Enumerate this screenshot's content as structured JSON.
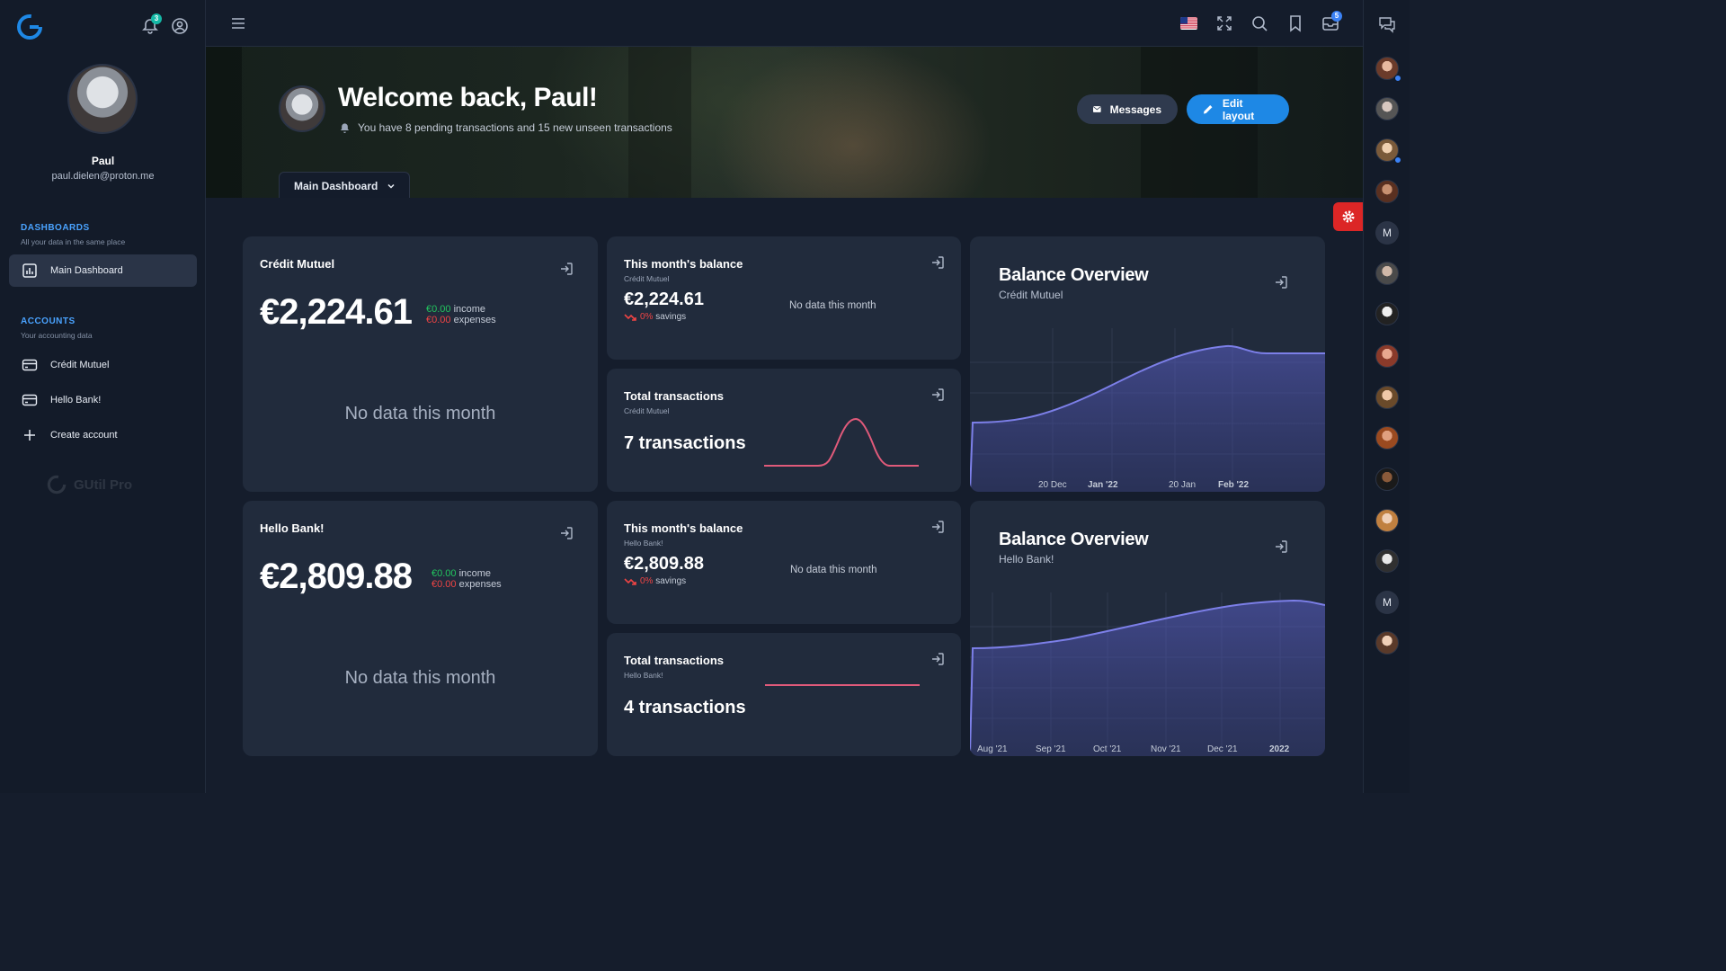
{
  "user": {
    "name": "Paul",
    "email": "paul.dielen@proton.me"
  },
  "notifications_count": "3",
  "mail_count": "5",
  "sidebar": {
    "dashboards_head": "DASHBOARDS",
    "dashboards_sub": "All your data in the same place",
    "main_dashboard": "Main Dashboard",
    "accounts_head": "ACCOUNTS",
    "accounts_sub": "Your accounting data",
    "accounts": [
      "Crédit Mutuel",
      "Hello Bank!"
    ],
    "create_account": "Create account",
    "brand": "GUtil Pro"
  },
  "hero": {
    "title": "Welcome back, Paul!",
    "subtitle": "You have 8 pending transactions and 15 new unseen transactions",
    "messages_btn": "Messages",
    "edit_btn": "Edit layout",
    "dashboard_select": "Main Dashboard"
  },
  "accounts": [
    {
      "name": "Crédit Mutuel",
      "balance": "€2,224.61",
      "income": "€0.00",
      "income_label": "income",
      "expenses": "€0.00",
      "expenses_label": "expenses",
      "no_data": "No data this month",
      "month_title": "This month's balance",
      "month_balance": "€2,224.61",
      "savings_pct": "0%",
      "savings_label": "savings",
      "month_no_data": "No data this month",
      "tx_title": "Total transactions",
      "tx_count": "7 transactions",
      "overview_title": "Balance Overview",
      "x_ticks": [
        "20 Dec",
        "Jan '22",
        "20 Jan",
        "Feb '22"
      ]
    },
    {
      "name": "Hello Bank!",
      "balance": "€2,809.88",
      "income": "€0.00",
      "income_label": "income",
      "expenses": "€0.00",
      "expenses_label": "expenses",
      "no_data": "No data this month",
      "month_title": "This month's balance",
      "month_balance": "€2,809.88",
      "savings_pct": "0%",
      "savings_label": "savings",
      "month_no_data": "No data this month",
      "tx_title": "Total transactions",
      "tx_count": "4 transactions",
      "overview_title": "Balance Overview",
      "x_ticks": [
        "Aug '21",
        "Sep '21",
        "Oct '21",
        "Nov '21",
        "Dec '21",
        "2022"
      ]
    }
  ],
  "right_rail_letters": [
    "M",
    "M"
  ],
  "colors": {
    "accent": "#1e88e5",
    "chart_line": "#7c7fe8",
    "spark_line": "#e05a7a",
    "income": "#22c55e",
    "expense": "#ef4444",
    "settings": "#dc2626"
  },
  "icons": [
    "bell-icon",
    "user-circle-icon",
    "menu-icon",
    "flag-us-icon",
    "fullscreen-icon",
    "search-icon",
    "bookmark-icon",
    "inbox-icon",
    "chat-icon",
    "gear-icon",
    "link-out-icon",
    "trend-down-icon",
    "envelope-icon",
    "pencil-icon",
    "chevron-down-icon",
    "credit-card-icon",
    "plus-icon",
    "bar-chart-icon"
  ]
}
